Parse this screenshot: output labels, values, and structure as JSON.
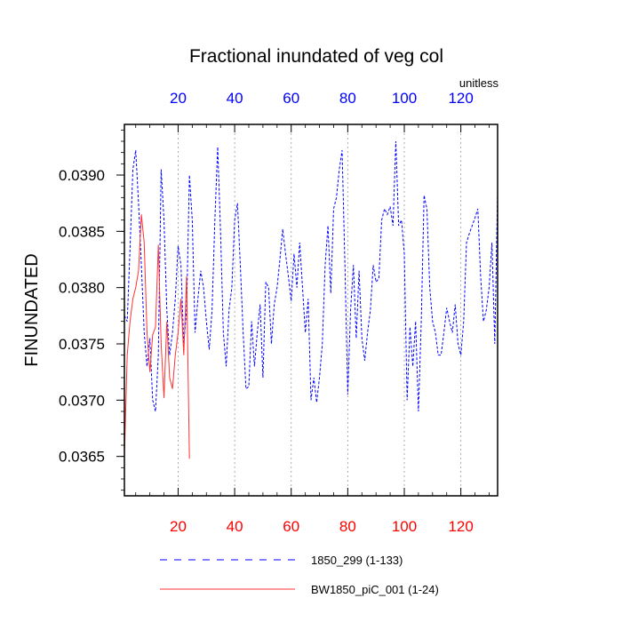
{
  "chart_data": {
    "type": "line",
    "title": "Fractional inundated of veg col",
    "ylabel": "FINUNDATED",
    "xlabel": "",
    "top_axis_units": "unitless",
    "xlim": [
      1,
      133
    ],
    "ylim": [
      0.03615,
      0.03945
    ],
    "x_ticks": [
      20,
      40,
      60,
      80,
      100,
      120
    ],
    "x_tick_labels": [
      "20",
      "40",
      "60",
      "80",
      "100",
      "120"
    ],
    "y_ticks": [
      0.0365,
      0.037,
      0.0375,
      0.038,
      0.0385,
      0.039
    ],
    "y_tick_labels": [
      "0.0365",
      "0.0370",
      "0.0375",
      "0.0380",
      "0.0385",
      "0.0390"
    ],
    "grid": "vertical dotted at major x ticks",
    "legend_position": "bottom",
    "colors": {
      "bottom_ticks": "#ff0000",
      "top_ticks": "#0000ff",
      "series_1850": "#0000ff",
      "series_bw": "#ff3333"
    },
    "series": [
      {
        "name": "1850_299 (1-133)",
        "style": "dashed",
        "color": "#0000ff",
        "x_start": 1,
        "values": [
          0.03775,
          0.0377,
          0.03835,
          0.03905,
          0.03922,
          0.03875,
          0.0382,
          0.0376,
          0.0373,
          0.03755,
          0.037,
          0.0369,
          0.0374,
          0.03905,
          0.0386,
          0.0378,
          0.0374,
          0.0376,
          0.0379,
          0.03837,
          0.0382,
          0.0375,
          0.0378,
          0.039,
          0.0386,
          0.0376,
          0.0379,
          0.03815,
          0.038,
          0.0377,
          0.03745,
          0.0378,
          0.0386,
          0.03925,
          0.0385,
          0.0376,
          0.0373,
          0.0378,
          0.038,
          0.0386,
          0.03875,
          0.0382,
          0.0376,
          0.0371,
          0.03712,
          0.0377,
          0.0373,
          0.0376,
          0.03785,
          0.0372,
          0.03805,
          0.038,
          0.0375,
          0.03785,
          0.038,
          0.03825,
          0.03852,
          0.0383,
          0.0381,
          0.03788,
          0.0383,
          0.038,
          0.0384,
          0.038,
          0.0376,
          0.0379,
          0.037,
          0.0372,
          0.03698,
          0.0372,
          0.0375,
          0.0382,
          0.03855,
          0.03795,
          0.0387,
          0.0388,
          0.03905,
          0.03922,
          0.0382,
          0.03705,
          0.0378,
          0.0382,
          0.03755,
          0.03815,
          0.03755,
          0.03735,
          0.0376,
          0.0378,
          0.0382,
          0.03805,
          0.03808,
          0.0386,
          0.0387,
          0.03865,
          0.03872,
          0.03855,
          0.0393,
          0.03855,
          0.0386,
          0.0383,
          0.037,
          0.03765,
          0.0373,
          0.0377,
          0.0369,
          0.0377,
          0.03882,
          0.0387,
          0.038,
          0.0377,
          0.0376,
          0.0374,
          0.0374,
          0.0376,
          0.03782,
          0.0377,
          0.0376,
          0.03785,
          0.0375,
          0.0374,
          0.0377,
          0.0384,
          0.03848,
          0.03855,
          0.03862,
          0.0387,
          0.0381,
          0.0377,
          0.0378,
          0.038,
          0.0384,
          0.0375,
          0.03885
        ]
      },
      {
        "name": "BW1850_piC_001 (1-24)",
        "style": "solid",
        "color": "#ff3333",
        "x_start": 1,
        "values": [
          0.0365,
          0.0374,
          0.0377,
          0.0379,
          0.038,
          0.03815,
          0.03865,
          0.0384,
          0.0376,
          0.03725,
          0.03758,
          0.03765,
          0.03838,
          0.0375,
          0.03702,
          0.0377,
          0.0372,
          0.0371,
          0.0374,
          0.0376,
          0.0379,
          0.0374,
          0.0381,
          0.03648
        ]
      }
    ]
  }
}
